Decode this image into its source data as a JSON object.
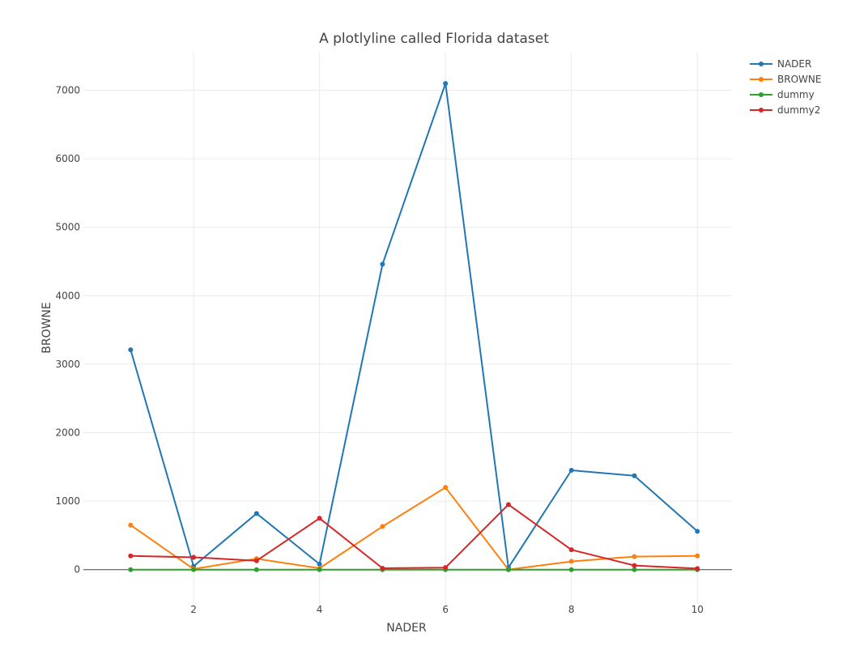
{
  "chart_data": {
    "type": "line",
    "title": "A plotlyline called Florida dataset",
    "xlabel": "NADER",
    "ylabel": "BROWNE",
    "x": [
      1,
      2,
      3,
      4,
      5,
      6,
      7,
      8,
      9,
      10
    ],
    "xlim": [
      0.25,
      10.55
    ],
    "ylim": [
      -500,
      7550
    ],
    "xticks": [
      2,
      4,
      6,
      8,
      10
    ],
    "yticks": [
      0,
      1000,
      2000,
      3000,
      4000,
      5000,
      6000,
      7000
    ],
    "grid": true,
    "legend_position": "top-right",
    "series": [
      {
        "name": "NADER",
        "color": "#1f77b4",
        "values": [
          3210,
          50,
          820,
          80,
          4460,
          7100,
          30,
          1450,
          1370,
          560
        ]
      },
      {
        "name": "BROWNE",
        "color": "#ff7f0e",
        "values": [
          650,
          10,
          160,
          20,
          630,
          1200,
          0,
          120,
          190,
          200
        ]
      },
      {
        "name": "dummy",
        "color": "#2ca02c",
        "values": [
          0,
          0,
          0,
          0,
          0,
          0,
          0,
          0,
          0,
          0
        ]
      },
      {
        "name": "dummy2",
        "color": "#d62728",
        "values": [
          200,
          180,
          130,
          750,
          20,
          30,
          950,
          290,
          60,
          15
        ]
      }
    ]
  }
}
